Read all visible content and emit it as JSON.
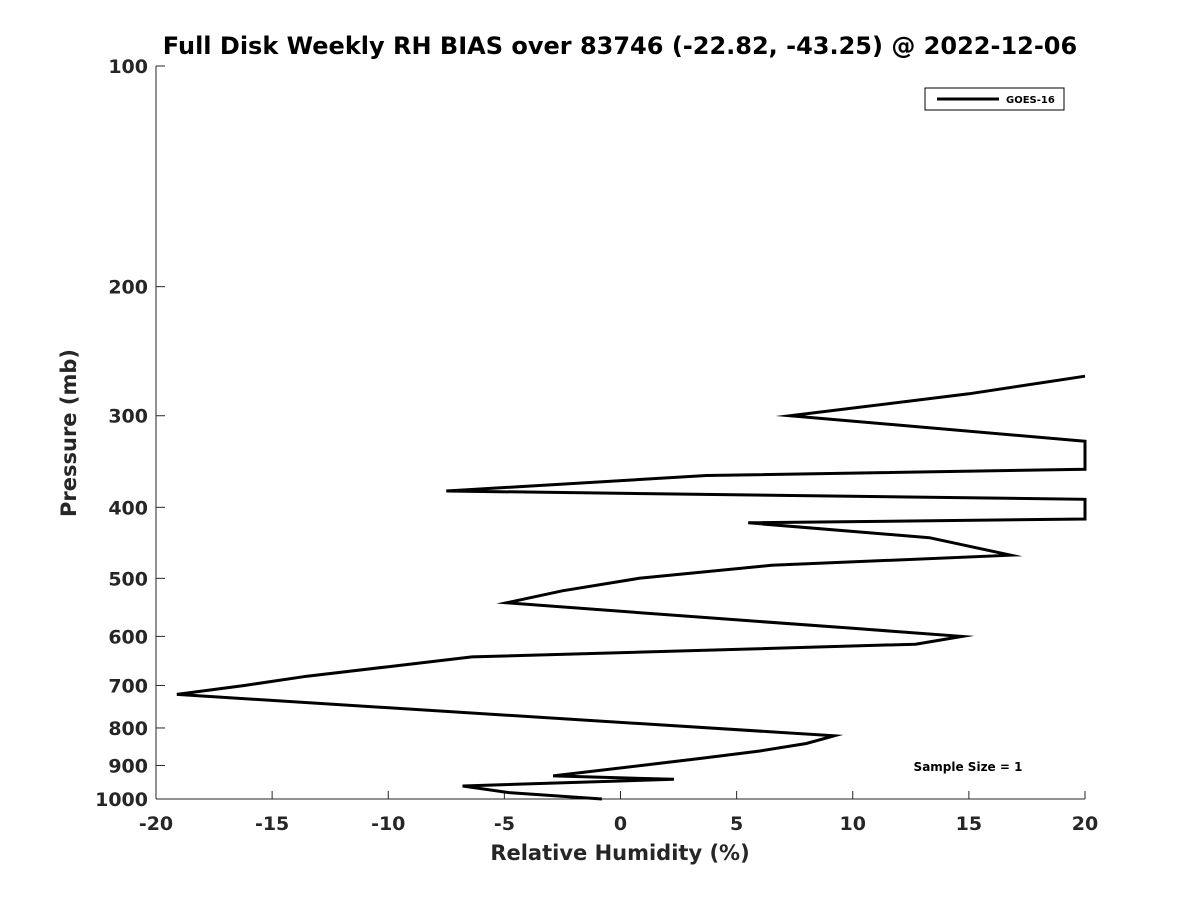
{
  "chart_data": {
    "type": "line",
    "title": "Full Disk Weekly RH BIAS over 83746 (-22.82, -43.25) @ 2022-12-06",
    "xlabel": "Relative Humidity (%)",
    "ylabel": "Pressure (mb)",
    "xlim": [
      -20,
      20
    ],
    "ylim": [
      100,
      1000
    ],
    "yscale": "log",
    "yreverse": true,
    "xticks": [
      -20,
      -15,
      -10,
      -5,
      0,
      5,
      10,
      15,
      20
    ],
    "xtick_labels": [
      "-20",
      "-15",
      "-10",
      "-5",
      "0",
      "5",
      "10",
      "15",
      "20"
    ],
    "yticks": [
      100,
      200,
      300,
      400,
      500,
      600,
      700,
      800,
      900,
      1000
    ],
    "ytick_labels": [
      "100",
      "200",
      "300",
      "400",
      "500",
      "600",
      "700",
      "800",
      "900",
      "1000"
    ],
    "grid": false,
    "legend_position": "top-right",
    "series": [
      {
        "name": "GOES-16",
        "color": "#000000",
        "x": [
          20,
          15,
          7.3,
          20,
          20,
          3.7,
          -7.5,
          20,
          20,
          5.5,
          13.3,
          16.8,
          6.5,
          0.8,
          -2.5,
          -4.9,
          3.5,
          10,
          14.7,
          12.7,
          -6.4,
          -10,
          -13.5,
          -16.2,
          -19.1,
          9.2,
          8,
          6,
          3.5,
          -2.9,
          2.3,
          -6.8,
          -4.8,
          -0.8
        ],
        "y": [
          265,
          280,
          300,
          325,
          355,
          362,
          380,
          390,
          415,
          420,
          440,
          465,
          480,
          500,
          520,
          540,
          565,
          585,
          600,
          615,
          640,
          660,
          680,
          700,
          720,
          820,
          840,
          860,
          880,
          930,
          940,
          960,
          980,
          1000
        ]
      }
    ],
    "annotations": [
      {
        "text": "Sample Size = 1",
        "position": "bottom-right"
      }
    ]
  }
}
